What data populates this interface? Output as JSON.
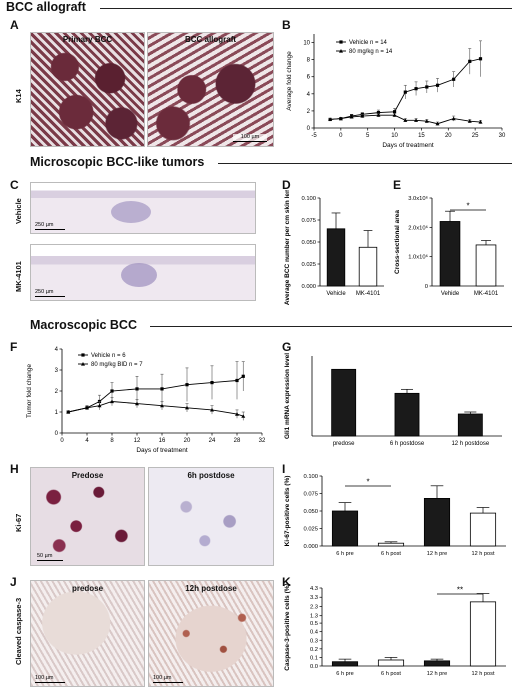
{
  "sections": {
    "s1": "BCC allograft",
    "s2": "Microscopic BCC-like tumors",
    "s3": "Macroscopic BCC"
  },
  "panels": {
    "A": "A",
    "B": "B",
    "C": "C",
    "D": "D",
    "E": "E",
    "F": "F",
    "G": "G",
    "H": "H",
    "I": "I",
    "J": "J",
    "K": "K"
  },
  "panel_a": {
    "row_label": "K14",
    "img1_title": "Primary BCC",
    "img2_title": "BCC allograft",
    "scale_right": "100 µm"
  },
  "panel_c": {
    "row1": "Vehicle",
    "row2": "MK-4101",
    "scale1": "250 µm",
    "scale2": "250 µm"
  },
  "panel_h": {
    "row_label": "Ki-67",
    "img1_title": "Predose",
    "img2_title": "6h postdose",
    "scale": "50 µm"
  },
  "panel_j": {
    "row_label": "Cleaved caspase-3",
    "img1_title": "predose",
    "img2_title": "12h postdose",
    "scale1": "100 µm",
    "scale2": "100 µm"
  },
  "chart_data": [
    {
      "id": "B",
      "type": "line",
      "xlabel": "Days of treatment",
      "ylabel": "Average fold change",
      "xlim": [
        -5,
        30
      ],
      "ylim": [
        0,
        11
      ],
      "xticks": [
        -5,
        0,
        5,
        10,
        15,
        20,
        25,
        30
      ],
      "yticks": [
        0,
        2,
        4,
        6,
        8,
        10
      ],
      "series": [
        {
          "name": "Vehicle n = 14",
          "x": [
            -2,
            0,
            2,
            4,
            7,
            10,
            12,
            14,
            16,
            18,
            21,
            24,
            26
          ],
          "y": [
            1.0,
            1.1,
            1.4,
            1.6,
            1.8,
            1.9,
            4.2,
            4.6,
            4.8,
            5.0,
            5.7,
            7.8,
            8.1
          ],
          "err": [
            0.1,
            0.1,
            0.2,
            0.2,
            0.3,
            0.4,
            0.8,
            0.8,
            0.7,
            0.8,
            0.9,
            1.5,
            2.1
          ]
        },
        {
          "name": "80 mg/kg n = 14",
          "x": [
            -2,
            0,
            2,
            4,
            7,
            10,
            12,
            14,
            16,
            18,
            21,
            24,
            26
          ],
          "y": [
            1.0,
            1.1,
            1.3,
            1.4,
            1.5,
            1.5,
            0.9,
            0.9,
            0.8,
            0.5,
            1.1,
            0.8,
            0.7
          ],
          "err": [
            0.1,
            0.1,
            0.1,
            0.2,
            0.2,
            0.2,
            0.2,
            0.2,
            0.2,
            0.2,
            0.3,
            0.2,
            0.2
          ]
        }
      ]
    },
    {
      "id": "D",
      "type": "bar",
      "ylabel": "Average BCC number per cm skin length",
      "categories": [
        "Vehicle",
        "MK-4101"
      ],
      "values": [
        0.065,
        0.044
      ],
      "err": [
        0.018,
        0.019
      ],
      "ylim": [
        0,
        0.1
      ],
      "yticks": [
        "0.000",
        "0.025",
        "0.050",
        "0.075",
        "0.100"
      ],
      "fills": [
        "#1a1a1a",
        "#ffffff"
      ]
    },
    {
      "id": "E",
      "type": "bar",
      "ylabel": "Cross-sectional area",
      "categories": [
        "Vehide",
        "MK-4101"
      ],
      "values": [
        2.2,
        1.4
      ],
      "err": [
        0.35,
        0.15
      ],
      "ylim": [
        0,
        3
      ],
      "yticks": [
        "0",
        "1.0x10⁶",
        "2.0x10⁶",
        "3.0x10⁶"
      ],
      "annotation": "*",
      "fills": [
        "#1a1a1a",
        "#ffffff"
      ]
    },
    {
      "id": "F",
      "type": "line",
      "xlabel": "Days of treatment",
      "ylabel": "Tumor fold change",
      "xlim": [
        0,
        32
      ],
      "ylim": [
        0,
        4
      ],
      "xticks": [
        0,
        4,
        8,
        12,
        16,
        20,
        24,
        28,
        32
      ],
      "yticks": [
        0,
        1,
        2,
        3,
        4
      ],
      "series": [
        {
          "name": "Vehicle n = 6",
          "x": [
            1,
            4,
            6,
            8,
            12,
            16,
            20,
            24,
            28,
            29
          ],
          "y": [
            1.0,
            1.2,
            1.5,
            2.0,
            2.1,
            2.1,
            2.3,
            2.4,
            2.5,
            2.7
          ],
          "err": [
            0.05,
            0.1,
            0.3,
            0.4,
            0.6,
            0.7,
            0.8,
            0.8,
            0.9,
            0.7
          ]
        },
        {
          "name": "80 mg/kg BID n = 7",
          "x": [
            1,
            4,
            6,
            8,
            12,
            16,
            20,
            24,
            28,
            29
          ],
          "y": [
            1.0,
            1.2,
            1.3,
            1.5,
            1.4,
            1.3,
            1.2,
            1.1,
            0.9,
            0.8
          ],
          "err": [
            0.05,
            0.1,
            0.2,
            0.2,
            0.2,
            0.2,
            0.2,
            0.2,
            0.2,
            0.2
          ]
        }
      ]
    },
    {
      "id": "G",
      "type": "bar",
      "ylabel": "Gli1 mRNA expression level",
      "categories": [
        "predose",
        "6 h postdose",
        "12 h postdose"
      ],
      "values": [
        100,
        64,
        33
      ],
      "err": [
        0,
        6,
        3
      ],
      "ylim": [
        0,
        120
      ],
      "yticks": [],
      "fills": [
        "#1a1a1a",
        "#1a1a1a",
        "#1a1a1a"
      ]
    },
    {
      "id": "I",
      "type": "bar",
      "ylabel": "Ki-67-positive cells (%)",
      "categories": [
        "6 h pre",
        "6 h post",
        "12 h pre",
        "12 h post"
      ],
      "values": [
        0.05,
        0.004,
        0.068,
        0.047
      ],
      "err": [
        0.012,
        0.002,
        0.018,
        0.008
      ],
      "ylim": [
        0,
        0.1
      ],
      "yticks": [
        "0.000",
        "0.025",
        "0.050",
        "0.075",
        "0.100"
      ],
      "annotation": "*",
      "fills": [
        "#1a1a1a",
        "#ffffff",
        "#1a1a1a",
        "#ffffff"
      ]
    },
    {
      "id": "K",
      "type": "bar",
      "ylabel": "Caspase-3-positive cells (%)",
      "categories": [
        "6 h pre",
        "6 h post",
        "12 h pre",
        "12 h post"
      ],
      "values": [
        0.05,
        0.07,
        0.06,
        2.8
      ],
      "err": [
        0.03,
        0.03,
        0.02,
        0.9
      ],
      "ylim": [
        0,
        4.3
      ],
      "yticks": [
        "0.0",
        "0.1",
        "0.2",
        "0.3",
        "0.4",
        "0.5",
        "1.3",
        "2.3",
        "3.3",
        "4.3"
      ],
      "annotation": "**",
      "fills": [
        "#1a1a1a",
        "#ffffff",
        "#1a1a1a",
        "#ffffff"
      ]
    }
  ]
}
